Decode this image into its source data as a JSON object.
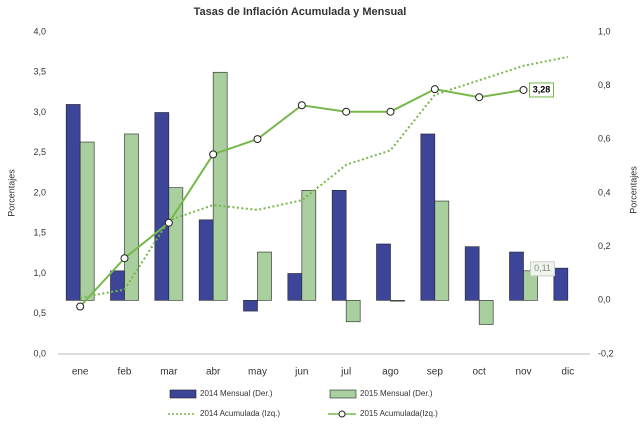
{
  "chart_data": {
    "type": "bar-line",
    "title": "Tasas de Inflación Acumulada y Mensual",
    "ylabel": "Porcentajes",
    "y2label": "Porcentajes",
    "categories": [
      "ene",
      "feb",
      "mar",
      "abr",
      "may",
      "jun",
      "jul",
      "ago",
      "sep",
      "oct",
      "nov",
      "dic"
    ],
    "ylim": [
      0,
      4.0
    ],
    "yticks": [
      {
        "value": 0,
        "label": "0,0"
      },
      {
        "value": 0.5,
        "label": "0,5"
      },
      {
        "value": 1.0,
        "label": "1,0"
      },
      {
        "value": 1.5,
        "label": "1,5"
      },
      {
        "value": 2.0,
        "label": "2,0"
      },
      {
        "value": 2.5,
        "label": "2,5"
      },
      {
        "value": 3.0,
        "label": "3,0"
      },
      {
        "value": 3.5,
        "label": "3,5"
      },
      {
        "value": 4.0,
        "label": "4,0"
      }
    ],
    "y2lim": [
      -0.2,
      1.0
    ],
    "y2ticks": [
      {
        "value": -0.2,
        "label": "-0,2"
      },
      {
        "value": 0,
        "label": "0,0"
      },
      {
        "value": 0.2,
        "label": "0,2"
      },
      {
        "value": 0.4,
        "label": "0,4"
      },
      {
        "value": 0.6,
        "label": "0,6"
      },
      {
        "value": 0.8,
        "label": "0,8"
      },
      {
        "value": 1.0,
        "label": "1,0"
      }
    ],
    "series": [
      {
        "name": "2014 Mensual (Der.)",
        "kind": "bar",
        "axis": "y2",
        "color": "#3d4599",
        "values": [
          0.73,
          0.11,
          0.7,
          0.3,
          -0.04,
          0.1,
          0.41,
          0.21,
          0.62,
          0.2,
          0.18,
          0.12
        ]
      },
      {
        "name": "2015 Mensual (Der.)",
        "kind": "bar",
        "axis": "y2",
        "color": "#a9cf9f",
        "values": [
          0.59,
          0.62,
          0.42,
          0.85,
          0.18,
          0.41,
          -0.08,
          0.0,
          0.37,
          -0.09,
          0.11,
          null
        ],
        "value_labels": [
          null,
          null,
          null,
          null,
          null,
          null,
          null,
          null,
          null,
          null,
          "0,11",
          null
        ]
      },
      {
        "name": "2014 Acumulada (Izq.)",
        "kind": "dotted",
        "color": "#76b84a",
        "values": [
          0.7,
          0.8,
          1.66,
          1.85,
          1.79,
          1.91,
          2.35,
          2.53,
          3.22,
          3.4,
          3.58,
          3.69
        ]
      },
      {
        "name": "2015 Acumulada(Izq.)",
        "kind": "line",
        "color": "#76b84a",
        "values": [
          0.59,
          1.19,
          1.63,
          2.48,
          2.67,
          3.09,
          3.01,
          3.01,
          3.29,
          3.19,
          3.28,
          null
        ],
        "value_labels": [
          null,
          null,
          null,
          null,
          null,
          null,
          null,
          null,
          null,
          null,
          "3,28",
          null
        ]
      }
    ]
  }
}
